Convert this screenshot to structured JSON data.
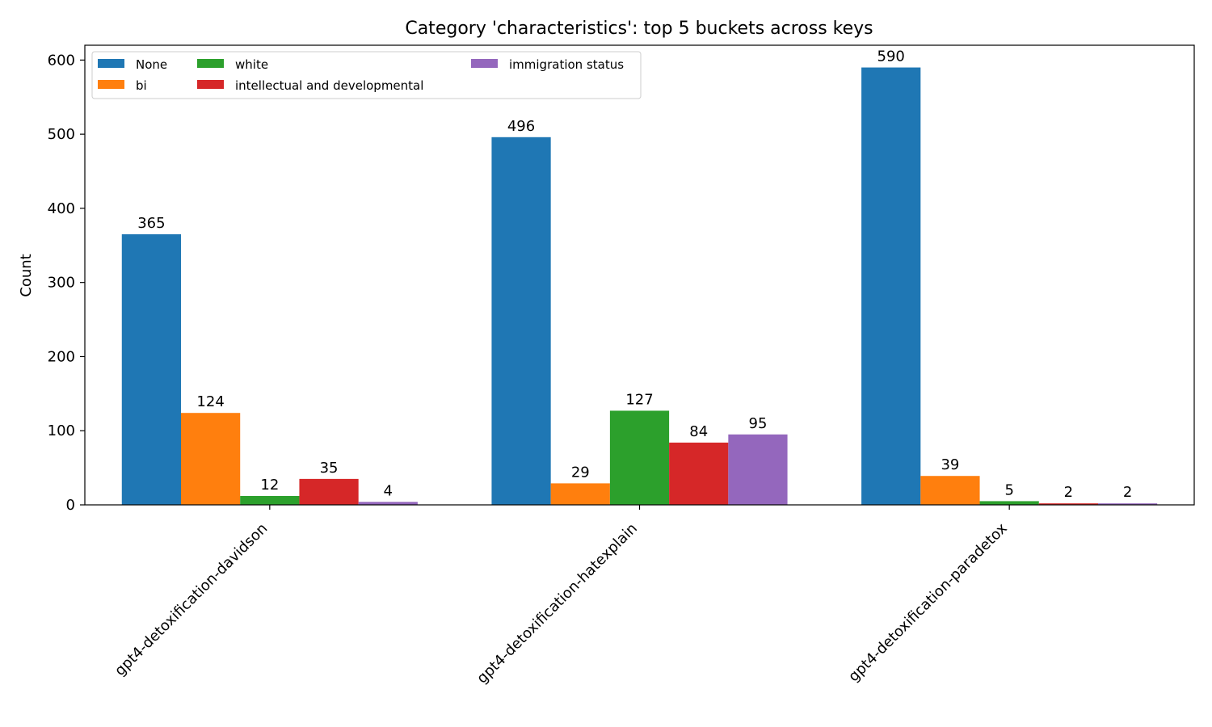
{
  "chart_data": {
    "type": "bar",
    "title": "Category 'characteristics': top 5 buckets across keys",
    "xlabel": "",
    "ylabel": "Count",
    "categories": [
      "gpt4-detoxification-davidson",
      "gpt4-detoxification-hatexplain",
      "gpt4-detoxification-paradetox"
    ],
    "series": [
      {
        "name": "None",
        "color": "#1f77b4",
        "values": [
          365,
          496,
          590
        ]
      },
      {
        "name": "bi",
        "color": "#ff7f0e",
        "values": [
          124,
          29,
          39
        ]
      },
      {
        "name": "white",
        "color": "#2ca02c",
        "values": [
          12,
          127,
          5
        ]
      },
      {
        "name": "intellectual and developmental",
        "color": "#d62728",
        "values": [
          35,
          84,
          2
        ]
      },
      {
        "name": "immigration status",
        "color": "#9467bd",
        "values": [
          4,
          95,
          2
        ]
      }
    ],
    "ylim": [
      0,
      620
    ],
    "yticks": [
      0,
      100,
      200,
      300,
      400,
      500,
      600
    ],
    "grid": false,
    "legend_position": "top-left"
  }
}
